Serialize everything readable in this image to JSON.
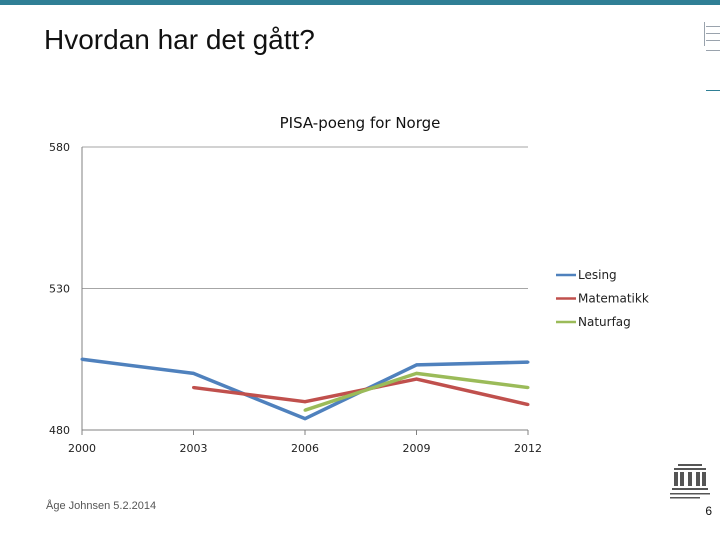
{
  "slide": {
    "title": "Hvordan har det gått?",
    "footer": "Åge Johnsen 5.2.2014",
    "page_number": "6"
  },
  "colors": {
    "top_bar": "#2f7f95",
    "lesing": "#4f81bd",
    "matematikk": "#c0504d",
    "naturfag": "#9bbb59"
  },
  "chart_data": {
    "type": "line",
    "title": "PISA-poeng for Norge",
    "xlabel": "",
    "ylabel": "",
    "categories": [
      "2000",
      "2003",
      "2006",
      "2009",
      "2012"
    ],
    "x": [
      2000,
      2003,
      2006,
      2009,
      2012
    ],
    "ylim": [
      480,
      580
    ],
    "yticks": [
      480,
      530,
      580
    ],
    "grid": true,
    "legend_position": "right",
    "series": [
      {
        "name": "Lesing",
        "color": "#4f81bd",
        "x": [
          2000,
          2003,
          2006,
          2009,
          2012
        ],
        "values": [
          505,
          500,
          484,
          503,
          504
        ]
      },
      {
        "name": "Matematikk",
        "color": "#c0504d",
        "x": [
          2003,
          2006,
          2009,
          2012
        ],
        "values": [
          495,
          490,
          498,
          489
        ]
      },
      {
        "name": "Naturfag",
        "color": "#9bbb59",
        "x": [
          2006,
          2009,
          2012
        ],
        "values": [
          487,
          500,
          495
        ]
      }
    ]
  }
}
